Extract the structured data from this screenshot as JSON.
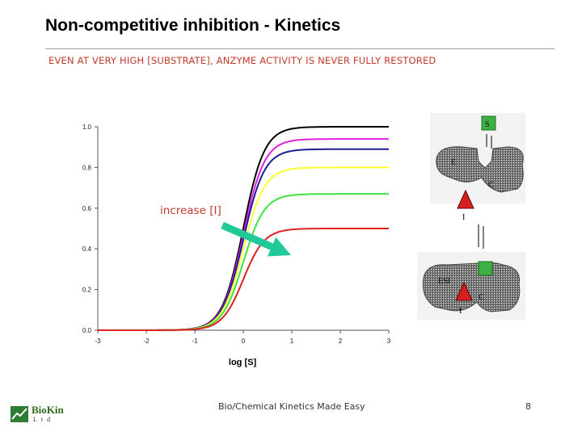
{
  "slide": {
    "title": "Non-competitive inhibition - Kinetics",
    "subtitle": "EVEN AT VERY HIGH [SUBSTRATE], ANZYME ACTIVITY IS NEVER FULLY RESTORED",
    "footer_text": "Bio/Chemical Kinetics Made Easy",
    "page_number": "8"
  },
  "logo": {
    "name": "BioKin",
    "suffix": "Ltd"
  },
  "diagram": {
    "labels": {
      "substrate": "S",
      "enzyme": "E",
      "catalytic_site": "C",
      "inhibitor": "I",
      "complex": "ESI"
    },
    "colors": {
      "substrate": "#3cb043",
      "inhibitor": "#d42020"
    }
  },
  "chart_data": {
    "type": "line",
    "title": "",
    "xlabel": "log [S]",
    "ylabel": "",
    "xlim": [
      -3,
      3
    ],
    "ylim": [
      0,
      1.0
    ],
    "xticks": [
      "-3",
      "-2",
      "-1",
      "0",
      "1",
      "2",
      "3"
    ],
    "yticks": [
      "0.0",
      "0.2",
      "0.4",
      "0.6",
      "0.8",
      "1.0"
    ],
    "grid": false,
    "annotation": "increase [I]",
    "arrow_color": "#20c997",
    "series": [
      {
        "color": "#000000",
        "vmax": 1.0,
        "x": [
          -3,
          -2,
          -1,
          -0.5,
          0,
          0.5,
          1,
          2,
          3
        ],
        "y": [
          0.001,
          0.01,
          0.091,
          0.24,
          0.5,
          0.76,
          0.909,
          0.99,
          0.999
        ]
      },
      {
        "color": "#e020e0",
        "vmax": 0.94,
        "x": [
          -3,
          -2,
          -1,
          -0.5,
          0,
          0.5,
          1,
          2,
          3
        ],
        "y": [
          0.001,
          0.009,
          0.085,
          0.226,
          0.47,
          0.714,
          0.855,
          0.931,
          0.939
        ]
      },
      {
        "color": "#1c1c9c",
        "vmax": 0.89,
        "x": [
          -3,
          -2,
          -1,
          -0.5,
          0,
          0.5,
          1,
          2,
          3
        ],
        "y": [
          0.001,
          0.009,
          0.081,
          0.214,
          0.445,
          0.676,
          0.809,
          0.881,
          0.889
        ]
      },
      {
        "color": "#ffff30",
        "vmax": 0.8,
        "x": [
          -3,
          -2,
          -1,
          -0.5,
          0,
          0.5,
          1,
          2,
          3
        ],
        "y": [
          0.001,
          0.008,
          0.073,
          0.192,
          0.4,
          0.608,
          0.727,
          0.792,
          0.799
        ]
      },
      {
        "color": "#40e040",
        "vmax": 0.67,
        "x": [
          -3,
          -2,
          -1,
          -0.5,
          0,
          0.5,
          1,
          2,
          3
        ],
        "y": [
          0.001,
          0.007,
          0.061,
          0.161,
          0.335,
          0.509,
          0.609,
          0.663,
          0.669
        ]
      },
      {
        "color": "#e02020",
        "vmax": 0.5,
        "x": [
          -3,
          -2,
          -1,
          -0.5,
          0,
          0.5,
          1,
          2,
          3
        ],
        "y": [
          0.0,
          0.005,
          0.045,
          0.12,
          0.25,
          0.38,
          0.455,
          0.495,
          0.5
        ]
      }
    ]
  }
}
